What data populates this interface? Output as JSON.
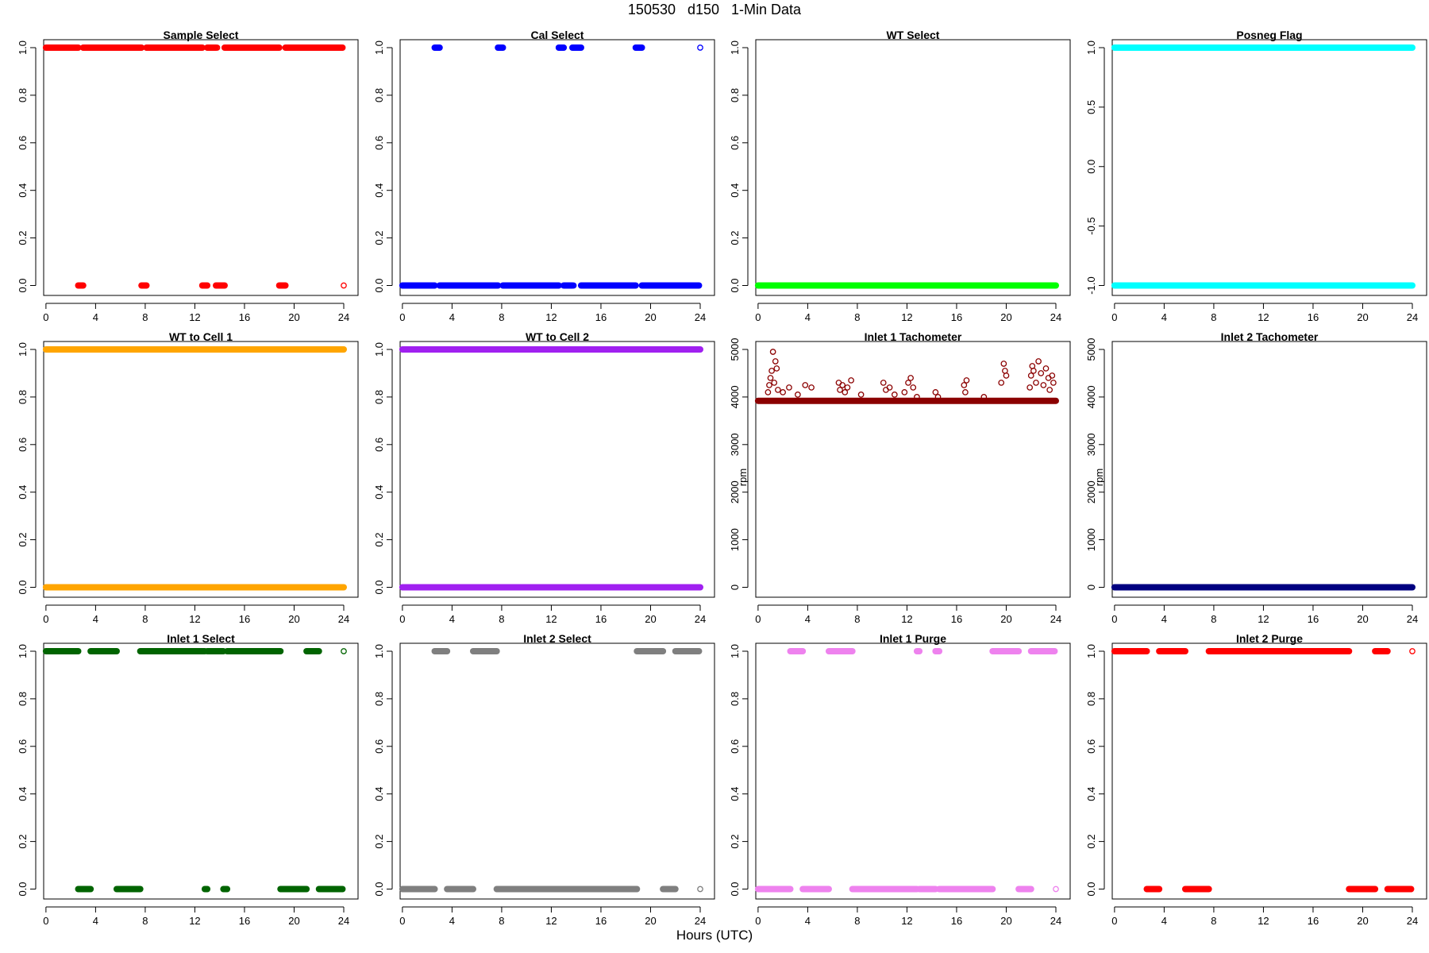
{
  "page": {
    "title": "150530   d150   1-Min Data",
    "xlabel": "Hours (UTC)"
  },
  "chart_data": [
    {
      "type": "scatter",
      "title": "Sample Select",
      "color": "#ff0000",
      "xlim": [
        0,
        24
      ],
      "ylim": [
        0,
        1
      ],
      "x_ticks": [
        "0",
        "4",
        "8",
        "12",
        "16",
        "20",
        "24"
      ],
      "y_ticks": [
        "0.0",
        "0.2",
        "0.4",
        "0.6",
        "0.8",
        "1.0"
      ],
      "ylabel": "",
      "segments": [
        {
          "y": 1,
          "from": 0,
          "to": 2.6
        },
        {
          "y": 0,
          "from": 2.6,
          "to": 3.0
        },
        {
          "y": 1,
          "from": 3.0,
          "to": 7.7
        },
        {
          "y": 0,
          "from": 7.7,
          "to": 8.1
        },
        {
          "y": 1,
          "from": 8.1,
          "to": 12.6
        },
        {
          "y": 0,
          "from": 12.6,
          "to": 13.0
        },
        {
          "y": 1,
          "from": 13.0,
          "to": 13.7
        },
        {
          "y": 0,
          "from": 13.7,
          "to": 14.4
        },
        {
          "y": 1,
          "from": 14.4,
          "to": 18.8
        },
        {
          "y": 0,
          "from": 18.8,
          "to": 19.3
        },
        {
          "y": 1,
          "from": 19.3,
          "to": 23.9
        }
      ],
      "points": [
        {
          "x": 24,
          "y": 0
        },
        {
          "x": 13.8,
          "y": 1
        }
      ]
    },
    {
      "type": "scatter",
      "title": "Cal Select",
      "color": "#0000ff",
      "xlim": [
        0,
        24
      ],
      "ylim": [
        0,
        1
      ],
      "x_ticks": [
        "0",
        "4",
        "8",
        "12",
        "16",
        "20",
        "24"
      ],
      "y_ticks": [
        "0.0",
        "0.2",
        "0.4",
        "0.6",
        "0.8",
        "1.0"
      ],
      "ylabel": "",
      "segments": [
        {
          "y": 0,
          "from": 0,
          "to": 2.6
        },
        {
          "y": 1,
          "from": 2.6,
          "to": 3.0
        },
        {
          "y": 0,
          "from": 3.0,
          "to": 7.7
        },
        {
          "y": 1,
          "from": 7.7,
          "to": 8.1
        },
        {
          "y": 0,
          "from": 8.1,
          "to": 12.6
        },
        {
          "y": 1,
          "from": 12.6,
          "to": 13.0
        },
        {
          "y": 0,
          "from": 13.0,
          "to": 13.7
        },
        {
          "y": 1,
          "from": 13.7,
          "to": 14.4
        },
        {
          "y": 0,
          "from": 14.4,
          "to": 18.8
        },
        {
          "y": 1,
          "from": 18.8,
          "to": 19.3
        },
        {
          "y": 0,
          "from": 19.3,
          "to": 23.9
        }
      ],
      "points": [
        {
          "x": 24,
          "y": 1
        },
        {
          "x": 13.8,
          "y": 0
        }
      ]
    },
    {
      "type": "scatter",
      "title": "WT Select",
      "color": "#00ff00",
      "xlim": [
        0,
        24
      ],
      "ylim": [
        0,
        1
      ],
      "x_ticks": [
        "0",
        "4",
        "8",
        "12",
        "16",
        "20",
        "24"
      ],
      "y_ticks": [
        "0.0",
        "0.2",
        "0.4",
        "0.6",
        "0.8",
        "1.0"
      ],
      "ylabel": "",
      "segments": [
        {
          "y": 0,
          "from": 0,
          "to": 24
        }
      ],
      "points": []
    },
    {
      "type": "scatter",
      "title": "Posneg Flag",
      "color": "#00ffff",
      "xlim": [
        0,
        24
      ],
      "ylim": [
        -1,
        1
      ],
      "x_ticks": [
        "0",
        "4",
        "8",
        "12",
        "16",
        "20",
        "24"
      ],
      "y_ticks": [
        "-1.0",
        "-0.5",
        "0.0",
        "0.5",
        "1.0"
      ],
      "ylabel": "",
      "segments": [
        {
          "y": 1,
          "from": 0,
          "to": 24
        },
        {
          "y": -1,
          "from": 0,
          "to": 24
        }
      ],
      "points": []
    },
    {
      "type": "scatter",
      "title": "WT to Cell 1",
      "color": "#ffa500",
      "xlim": [
        0,
        24
      ],
      "ylim": [
        0,
        1
      ],
      "x_ticks": [
        "0",
        "4",
        "8",
        "12",
        "16",
        "20",
        "24"
      ],
      "y_ticks": [
        "0.0",
        "0.2",
        "0.4",
        "0.6",
        "0.8",
        "1.0"
      ],
      "ylabel": "",
      "segments": [
        {
          "y": 1,
          "from": 0,
          "to": 24
        },
        {
          "y": 0,
          "from": 0,
          "to": 24
        }
      ],
      "points": []
    },
    {
      "type": "scatter",
      "title": "WT to Cell 2",
      "color": "#a020f0",
      "xlim": [
        0,
        24
      ],
      "ylim": [
        0,
        1
      ],
      "x_ticks": [
        "0",
        "4",
        "8",
        "12",
        "16",
        "20",
        "24"
      ],
      "y_ticks": [
        "0.0",
        "0.2",
        "0.4",
        "0.6",
        "0.8",
        "1.0"
      ],
      "ylabel": "",
      "segments": [
        {
          "y": 1,
          "from": 0,
          "to": 24
        },
        {
          "y": 0,
          "from": 0,
          "to": 24
        }
      ],
      "points": []
    },
    {
      "type": "scatter",
      "title": "Inlet 1 Tachometer",
      "color": "#8b0000",
      "xlim": [
        0,
        24
      ],
      "ylim": [
        0,
        5000
      ],
      "x_ticks": [
        "0",
        "4",
        "8",
        "12",
        "16",
        "20",
        "24"
      ],
      "y_ticks": [
        "0",
        "1000",
        "2000",
        "3000",
        "4000",
        "5000"
      ],
      "ylabel": "rpm",
      "segments": [
        {
          "y": 3920,
          "from": 0,
          "to": 24
        }
      ],
      "points": [
        {
          "x": 0.8,
          "y": 4100
        },
        {
          "x": 0.9,
          "y": 4250
        },
        {
          "x": 1.0,
          "y": 4400
        },
        {
          "x": 1.1,
          "y": 4550
        },
        {
          "x": 1.2,
          "y": 4950
        },
        {
          "x": 1.4,
          "y": 4750
        },
        {
          "x": 1.5,
          "y": 4600
        },
        {
          "x": 1.3,
          "y": 4300
        },
        {
          "x": 1.6,
          "y": 4150
        },
        {
          "x": 2.0,
          "y": 4100
        },
        {
          "x": 2.5,
          "y": 4200
        },
        {
          "x": 3.2,
          "y": 4050
        },
        {
          "x": 3.8,
          "y": 4250
        },
        {
          "x": 4.3,
          "y": 4200
        },
        {
          "x": 6.5,
          "y": 4300
        },
        {
          "x": 6.6,
          "y": 4150
        },
        {
          "x": 6.8,
          "y": 4250
        },
        {
          "x": 7.0,
          "y": 4100
        },
        {
          "x": 7.2,
          "y": 4200
        },
        {
          "x": 7.5,
          "y": 4350
        },
        {
          "x": 8.3,
          "y": 4050
        },
        {
          "x": 10.1,
          "y": 4300
        },
        {
          "x": 10.3,
          "y": 4150
        },
        {
          "x": 10.6,
          "y": 4200
        },
        {
          "x": 11.0,
          "y": 4050
        },
        {
          "x": 11.8,
          "y": 4100
        },
        {
          "x": 12.1,
          "y": 4300
        },
        {
          "x": 12.3,
          "y": 4400
        },
        {
          "x": 12.5,
          "y": 4200
        },
        {
          "x": 12.8,
          "y": 4000
        },
        {
          "x": 14.3,
          "y": 4100
        },
        {
          "x": 14.5,
          "y": 4000
        },
        {
          "x": 16.6,
          "y": 4250
        },
        {
          "x": 16.8,
          "y": 4350
        },
        {
          "x": 16.7,
          "y": 4100
        },
        {
          "x": 18.2,
          "y": 4000
        },
        {
          "x": 19.6,
          "y": 4300
        },
        {
          "x": 19.8,
          "y": 4700
        },
        {
          "x": 19.9,
          "y": 4550
        },
        {
          "x": 20.0,
          "y": 4450
        },
        {
          "x": 21.9,
          "y": 4200
        },
        {
          "x": 22.0,
          "y": 4450
        },
        {
          "x": 22.1,
          "y": 4650
        },
        {
          "x": 22.2,
          "y": 4550
        },
        {
          "x": 22.4,
          "y": 4300
        },
        {
          "x": 22.6,
          "y": 4750
        },
        {
          "x": 22.8,
          "y": 4500
        },
        {
          "x": 23.0,
          "y": 4250
        },
        {
          "x": 23.2,
          "y": 4600
        },
        {
          "x": 23.4,
          "y": 4400
        },
        {
          "x": 23.5,
          "y": 4150
        },
        {
          "x": 23.7,
          "y": 4450
        },
        {
          "x": 23.8,
          "y": 4300
        }
      ]
    },
    {
      "type": "scatter",
      "title": "Inlet 2 Tachometer",
      "color": "#000080",
      "xlim": [
        0,
        24
      ],
      "ylim": [
        0,
        5000
      ],
      "x_ticks": [
        "0",
        "4",
        "8",
        "12",
        "16",
        "20",
        "24"
      ],
      "y_ticks": [
        "0",
        "1000",
        "2000",
        "3000",
        "4000",
        "5000"
      ],
      "ylabel": "rpm",
      "segments": [
        {
          "y": 0,
          "from": 0,
          "to": 24
        }
      ],
      "points": []
    },
    {
      "type": "scatter",
      "title": "Inlet 1 Select",
      "color": "#006400",
      "xlim": [
        0,
        24
      ],
      "ylim": [
        0,
        1
      ],
      "x_ticks": [
        "0",
        "4",
        "8",
        "12",
        "16",
        "20",
        "24"
      ],
      "y_ticks": [
        "0.0",
        "0.2",
        "0.4",
        "0.6",
        "0.8",
        "1.0"
      ],
      "ylabel": "",
      "segments": [
        {
          "y": 1,
          "from": 0,
          "to": 2.6
        },
        {
          "y": 0,
          "from": 2.6,
          "to": 3.6
        },
        {
          "y": 1,
          "from": 3.6,
          "to": 5.7
        },
        {
          "y": 0,
          "from": 5.7,
          "to": 7.6
        },
        {
          "y": 1,
          "from": 7.6,
          "to": 12.8
        },
        {
          "y": 0,
          "from": 12.8,
          "to": 13.0
        },
        {
          "y": 1,
          "from": 13.0,
          "to": 14.3
        },
        {
          "y": 0,
          "from": 14.3,
          "to": 14.6
        },
        {
          "y": 1,
          "from": 14.6,
          "to": 18.9
        },
        {
          "y": 0,
          "from": 18.9,
          "to": 21.0
        },
        {
          "y": 1,
          "from": 21.0,
          "to": 22.0
        },
        {
          "y": 0,
          "from": 22.0,
          "to": 23.9
        }
      ],
      "points": [
        {
          "x": 24,
          "y": 1
        }
      ]
    },
    {
      "type": "scatter",
      "title": "Inlet 2 Select",
      "color": "#7f7f7f",
      "xlim": [
        0,
        24
      ],
      "ylim": [
        0,
        1
      ],
      "x_ticks": [
        "0",
        "4",
        "8",
        "12",
        "16",
        "20",
        "24"
      ],
      "y_ticks": [
        "0.0",
        "0.2",
        "0.4",
        "0.6",
        "0.8",
        "1.0"
      ],
      "ylabel": "",
      "segments": [
        {
          "y": 0,
          "from": 0,
          "to": 2.6
        },
        {
          "y": 1,
          "from": 2.6,
          "to": 3.6
        },
        {
          "y": 0,
          "from": 3.6,
          "to": 5.7
        },
        {
          "y": 1,
          "from": 5.7,
          "to": 7.6
        },
        {
          "y": 0,
          "from": 7.6,
          "to": 18.9
        },
        {
          "y": 1,
          "from": 18.9,
          "to": 21.0
        },
        {
          "y": 0,
          "from": 21.0,
          "to": 22.0
        },
        {
          "y": 1,
          "from": 22.0,
          "to": 23.9
        }
      ],
      "points": [
        {
          "x": 24,
          "y": 0
        }
      ]
    },
    {
      "type": "scatter",
      "title": "Inlet 1 Purge",
      "color": "#ee82ee",
      "xlim": [
        0,
        24
      ],
      "ylim": [
        0,
        1
      ],
      "x_ticks": [
        "0",
        "4",
        "8",
        "12",
        "16",
        "20",
        "24"
      ],
      "y_ticks": [
        "0.0",
        "0.2",
        "0.4",
        "0.6",
        "0.8",
        "1.0"
      ],
      "ylabel": "",
      "segments": [
        {
          "y": 0,
          "from": 0,
          "to": 2.6
        },
        {
          "y": 1,
          "from": 2.6,
          "to": 3.6
        },
        {
          "y": 0,
          "from": 3.6,
          "to": 5.7
        },
        {
          "y": 1,
          "from": 5.7,
          "to": 7.6
        },
        {
          "y": 0,
          "from": 7.6,
          "to": 12.8
        },
        {
          "y": 1,
          "from": 12.8,
          "to": 13.0
        },
        {
          "y": 0,
          "from": 13.0,
          "to": 14.3
        },
        {
          "y": 1,
          "from": 14.3,
          "to": 14.6
        },
        {
          "y": 0,
          "from": 14.6,
          "to": 18.9
        },
        {
          "y": 1,
          "from": 18.9,
          "to": 21.0
        },
        {
          "y": 0,
          "from": 21.0,
          "to": 22.0
        },
        {
          "y": 1,
          "from": 22.0,
          "to": 23.9
        }
      ],
      "points": [
        {
          "x": 24,
          "y": 0
        }
      ]
    },
    {
      "type": "scatter",
      "title": "Inlet 2 Purge",
      "color": "#ff0000",
      "xlim": [
        0,
        24
      ],
      "ylim": [
        0,
        1
      ],
      "x_ticks": [
        "0",
        "4",
        "8",
        "12",
        "16",
        "20",
        "24"
      ],
      "y_ticks": [
        "0.0",
        "0.2",
        "0.4",
        "0.6",
        "0.8",
        "1.0"
      ],
      "ylabel": "",
      "segments": [
        {
          "y": 1,
          "from": 0,
          "to": 2.6
        },
        {
          "y": 0,
          "from": 2.6,
          "to": 3.6
        },
        {
          "y": 1,
          "from": 3.6,
          "to": 5.7
        },
        {
          "y": 0,
          "from": 5.7,
          "to": 7.6
        },
        {
          "y": 1,
          "from": 7.6,
          "to": 18.9
        },
        {
          "y": 0,
          "from": 18.9,
          "to": 21.0
        },
        {
          "y": 1,
          "from": 21.0,
          "to": 22.0
        },
        {
          "y": 0,
          "from": 22.0,
          "to": 23.9
        }
      ],
      "points": [
        {
          "x": 24,
          "y": 1
        }
      ]
    }
  ]
}
